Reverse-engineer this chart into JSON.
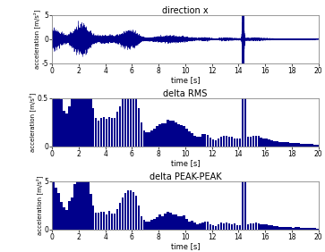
{
  "title1": "direction x",
  "title2": "delta RMS",
  "title3": "delta PEAK-PEAK",
  "xlabel": "time [s]",
  "ylabel": "acceleration [m/s²]",
  "xlim": [
    0,
    20
  ],
  "ylim1": [
    -5,
    5
  ],
  "ylim2": [
    0,
    0.5
  ],
  "ylim3": [
    0,
    5
  ],
  "color": "#00008B",
  "yticks1": [
    -5,
    0,
    5
  ],
  "yticks2": [
    0,
    0.5
  ],
  "yticks3": [
    0,
    5
  ],
  "seed": 7
}
